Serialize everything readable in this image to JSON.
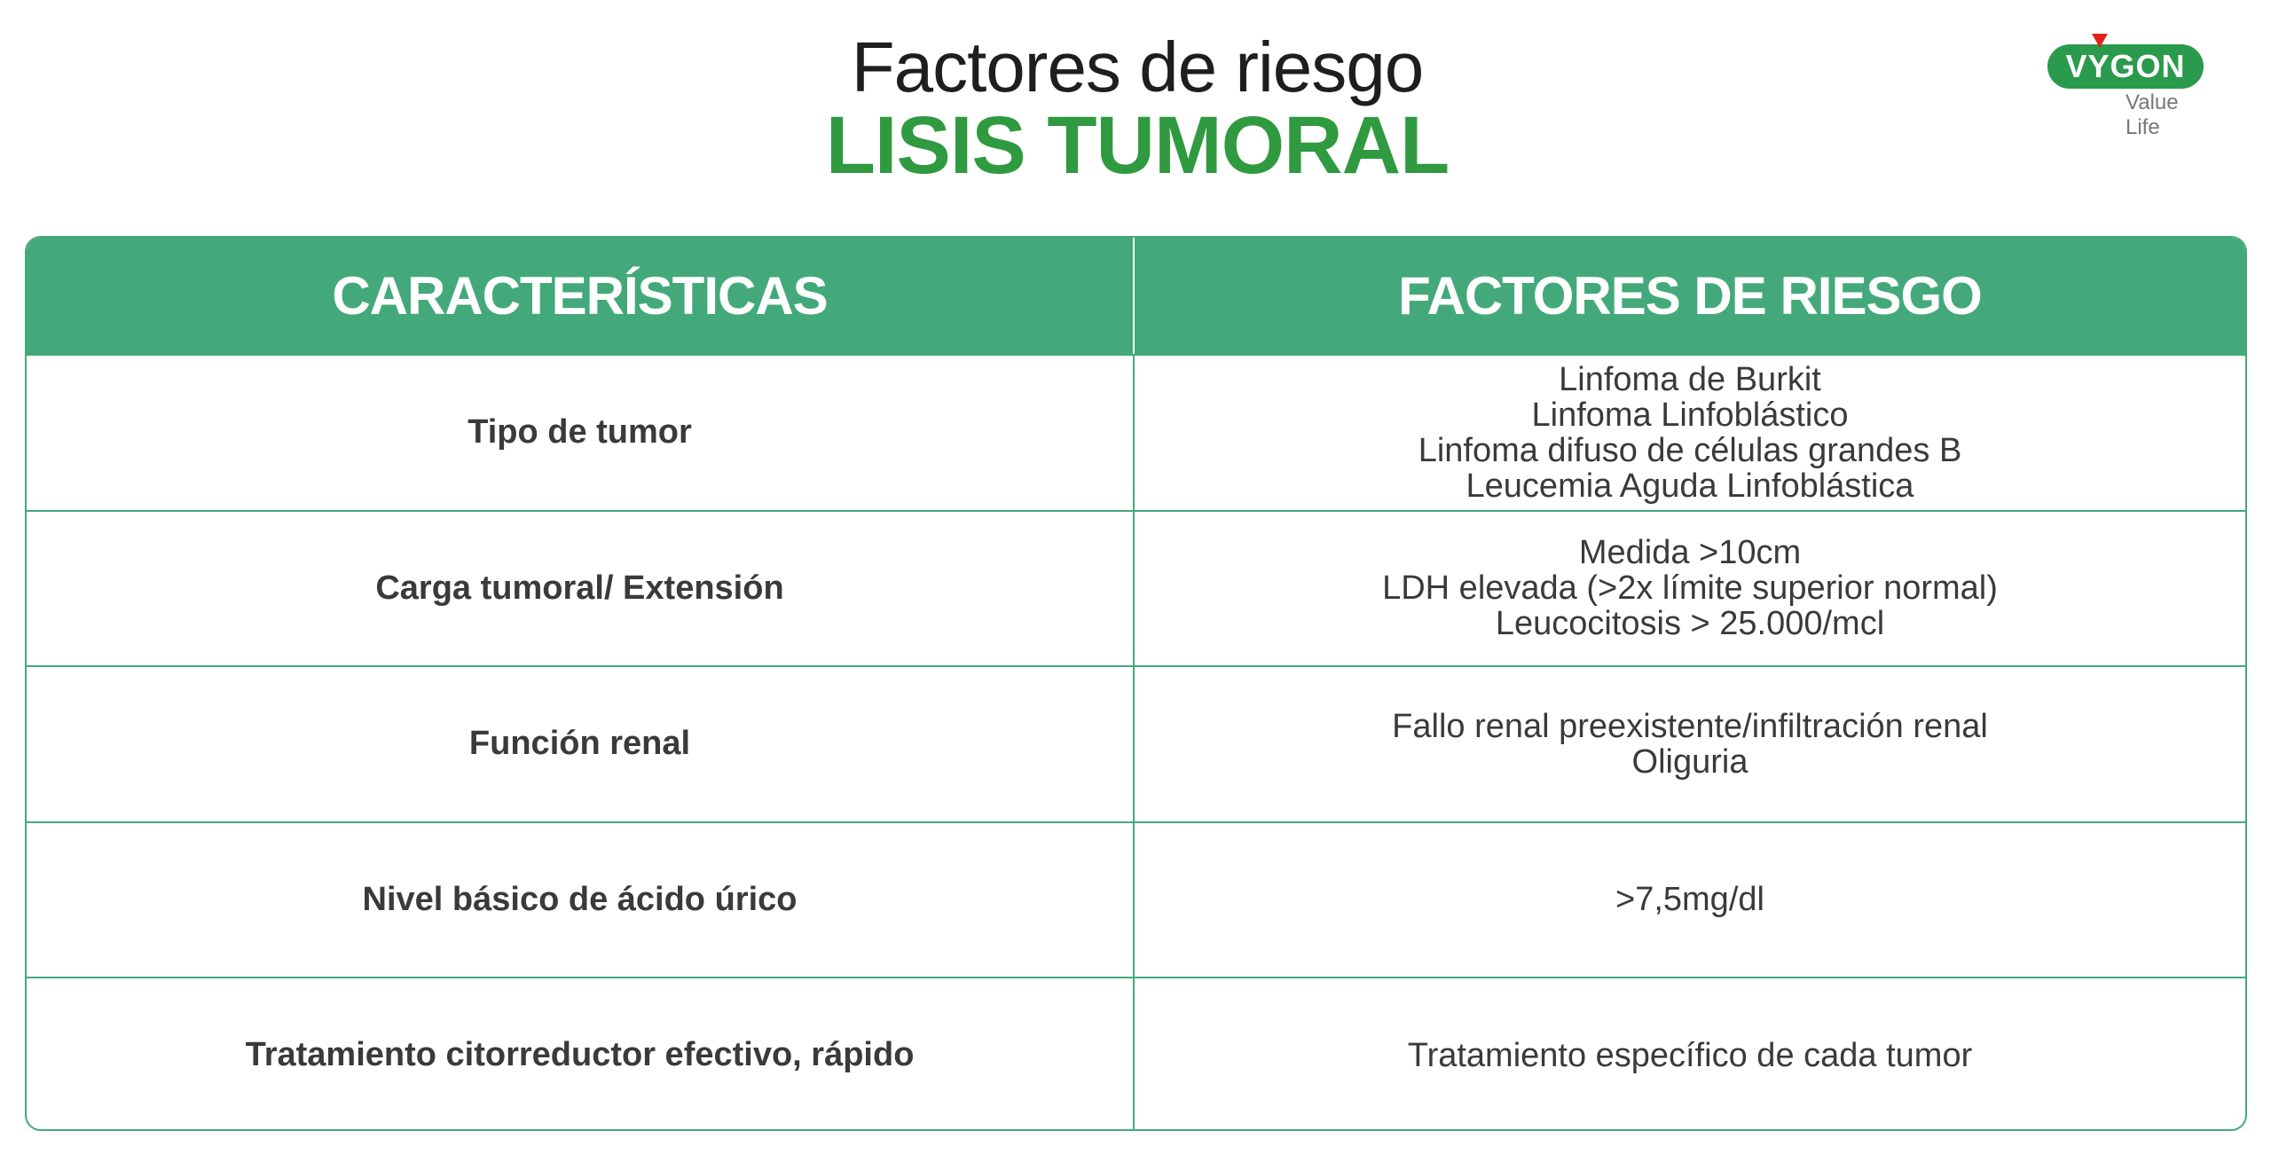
{
  "title": {
    "line1": "Factores de riesgo",
    "line2": "LISIS TUMORAL"
  },
  "logo": {
    "brand": "VYGON",
    "tagline": "Value Life"
  },
  "colors": {
    "header_green": "#43a97b",
    "title_green": "#2f9a3f",
    "logo_green": "#2a9a4d",
    "logo_red": "#e2231a"
  },
  "table": {
    "headers": [
      "CARACTERÍSTICAS",
      "FACTORES DE RIESGO"
    ],
    "rows": [
      {
        "characteristic": "Tipo de tumor",
        "factors": [
          "Linfoma de Burkit",
          "Linfoma Linfoblástico",
          "Linfoma difuso de células grandes B",
          "Leucemia Aguda Linfoblástica"
        ]
      },
      {
        "characteristic": "Carga tumoral/ Extensión",
        "factors": [
          "Medida >10cm",
          "LDH elevada (>2x límite superior normal)",
          "Leucocitosis > 25.000/mcl"
        ]
      },
      {
        "characteristic": "Función renal",
        "factors": [
          "Fallo renal preexistente/infiltración renal",
          "Oliguria"
        ]
      },
      {
        "characteristic": "Nivel básico de ácido úrico",
        "factors": [
          ">7,5mg/dl"
        ]
      },
      {
        "characteristic": "Tratamiento citorreductor efectivo, rápido",
        "factors": [
          "Tratamiento específico de cada tumor"
        ]
      }
    ]
  }
}
